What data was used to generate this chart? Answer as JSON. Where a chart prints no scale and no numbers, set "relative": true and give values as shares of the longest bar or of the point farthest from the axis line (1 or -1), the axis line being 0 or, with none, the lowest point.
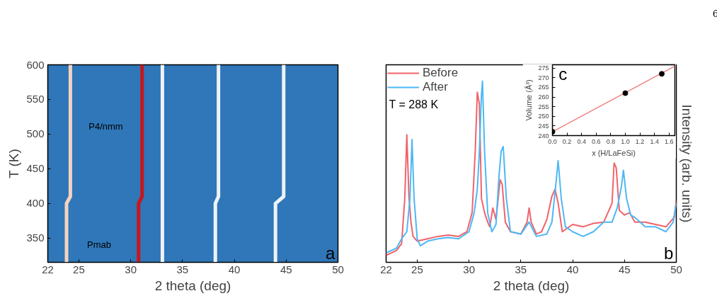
{
  "chart_data": [
    {
      "type": "line",
      "xlabel": "2 theta (deg)",
      "ylabel": "T (K)",
      "xlim": [
        22,
        50
      ],
      "xticks": [
        22,
        25,
        30,
        35,
        40,
        45,
        50
      ],
      "ylim": [
        315,
        600
      ],
      "yticks": [
        350,
        400,
        450,
        500,
        550,
        600
      ],
      "series": [
        {
          "color": "#f6d2c0",
          "x": [
            23.81,
            23.81,
            24.18,
            24.18
          ],
          "values": [
            315,
            400,
            410,
            600
          ]
        },
        {
          "color": "#c8161d",
          "x": [
            30.76,
            30.76,
            31.1,
            31.1
          ],
          "values": [
            315,
            400,
            410,
            600
          ]
        },
        {
          "color": "#eef3f8",
          "x": [
            33.06,
            33.06,
            33.06,
            33.06
          ],
          "values": [
            315,
            400,
            410,
            600
          ]
        },
        {
          "color": "#eef3f8",
          "x": [
            38.17,
            38.17,
            38.47,
            38.47
          ],
          "values": [
            315,
            400,
            410,
            600
          ]
        },
        {
          "color": "#eef3f8",
          "x": [
            43.97,
            43.97,
            44.76,
            44.76
          ],
          "values": [
            315,
            400,
            410,
            600
          ]
        }
      ],
      "annotations": [
        "P4/nmm",
        "Pmab",
        "a"
      ]
    },
    {
      "type": "line",
      "relative": true,
      "xlabel": "2 theta (deg)",
      "ylabel": "Intensity (arb. units)",
      "xlim": [
        22,
        50
      ],
      "xticks": [
        22,
        25,
        30,
        35,
        40,
        45,
        50
      ],
      "legend": "top left",
      "series": [
        {
          "name": "Before",
          "color": "#f0636a",
          "x": [
            22.0,
            23.0,
            23.5,
            23.8,
            24.0,
            24.2,
            24.4,
            24.6,
            25,
            26,
            27,
            28,
            29,
            29.8,
            30.3,
            30.6,
            30.8,
            31.0,
            31.2,
            31.5,
            31.8,
            32.0,
            32.3,
            32.6,
            33.0,
            33.2,
            33.5,
            34.0,
            35.0,
            35.6,
            35.8,
            36.0,
            36.5,
            37.0,
            37.5,
            38.0,
            38.3,
            38.6,
            39.0,
            40,
            41,
            42,
            43,
            43.8,
            44.0,
            44.2,
            44.5,
            45,
            45.5,
            46,
            47,
            48,
            49,
            49.8,
            50
          ],
          "values": [
            0.039,
            0.065,
            0.104,
            0.352,
            0.704,
            0.365,
            0.222,
            0.143,
            0.117,
            0.13,
            0.143,
            0.15,
            0.143,
            0.169,
            0.274,
            0.613,
            0.939,
            0.874,
            0.352,
            0.274,
            0.222,
            0.196,
            0.3,
            0.235,
            0.456,
            0.43,
            0.222,
            0.169,
            0.156,
            0.222,
            0.3,
            0.222,
            0.156,
            0.169,
            0.235,
            0.365,
            0.404,
            0.326,
            0.169,
            0.209,
            0.196,
            0.215,
            0.222,
            0.326,
            0.548,
            0.522,
            0.287,
            0.261,
            0.274,
            0.222,
            0.222,
            0.209,
            0.196,
            0.248,
            0.339
          ]
        },
        {
          "name": "After",
          "color": "#4db8f5",
          "x": [
            22,
            23,
            23.5,
            24.0,
            24.3,
            24.5,
            24.7,
            25.0,
            25.3,
            26,
            27,
            28,
            29,
            30,
            30.5,
            30.8,
            31.0,
            31.2,
            31.3,
            31.5,
            31.8,
            32.2,
            32.6,
            32.9,
            33.1,
            33.3,
            33.6,
            34.0,
            35,
            35.8,
            36.5,
            37.5,
            38.0,
            38.4,
            38.6,
            38.9,
            39.3,
            40,
            41,
            42,
            43,
            43.8,
            44.3,
            44.7,
            44.9,
            45.2,
            45.6,
            46,
            47,
            48,
            49,
            49.7,
            50
          ],
          "values": [
            0.052,
            0.078,
            0.13,
            0.169,
            0.352,
            0.678,
            0.352,
            0.13,
            0.091,
            0.117,
            0.13,
            0.137,
            0.13,
            0.169,
            0.274,
            0.404,
            0.613,
            0.926,
            1.0,
            0.613,
            0.274,
            0.169,
            0.209,
            0.482,
            0.613,
            0.639,
            0.352,
            0.169,
            0.156,
            0.222,
            0.143,
            0.156,
            0.222,
            0.443,
            0.561,
            0.352,
            0.196,
            0.169,
            0.143,
            0.169,
            0.222,
            0.222,
            0.3,
            0.417,
            0.508,
            0.352,
            0.261,
            0.248,
            0.196,
            0.196,
            0.169,
            0.222,
            0.326
          ]
        }
      ],
      "annotations": [
        "T = 288 K",
        "b",
        "6"
      ]
    },
    {
      "type": "scatter",
      "xlabel": "x (H/LaFeSi)",
      "ylabel": "Volume (Å³)",
      "xlim": [
        0,
        1.68
      ],
      "xticks": [
        {
          "value": 0,
          "label": "0.0"
        },
        {
          "value": 0.2,
          "label": "0.2"
        },
        {
          "value": 0.4,
          "label": "0.4"
        },
        {
          "value": 0.6,
          "label": "0.6"
        },
        {
          "value": 0.8,
          "label": "0.8"
        },
        {
          "value": 1,
          "label": "1.0"
        },
        {
          "value": 1.2,
          "label": "1.2"
        },
        {
          "value": 1.4,
          "label": "1.4"
        },
        {
          "value": 1.6,
          "label": "1.6"
        }
      ],
      "ylim": [
        240,
        276.7
      ],
      "yticks": [
        240,
        245,
        250,
        255,
        260,
        265,
        270,
        275
      ],
      "series": [
        {
          "type": "line",
          "color": "#f08080",
          "x": [
            0,
            1.68
          ],
          "values": [
            242,
            276
          ]
        },
        {
          "type": "scatter",
          "marker": "circle",
          "color": "#000000",
          "x": [
            0,
            1,
            1.5
          ],
          "values": [
            242,
            262,
            272
          ]
        }
      ],
      "annotations": [
        "c"
      ]
    }
  ]
}
